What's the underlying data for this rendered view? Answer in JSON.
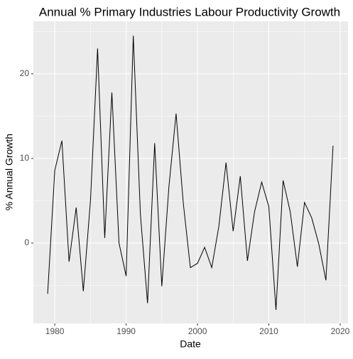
{
  "chart_data": {
    "type": "line",
    "title": "Annual % Primary Industries Labour Productivity Growth",
    "x_label": "Date",
    "y_label": "% Annual Growth",
    "x": [
      1979,
      1980,
      1981,
      1982,
      1983,
      1984,
      1985,
      1986,
      1987,
      1988,
      1989,
      1990,
      1991,
      1992,
      1993,
      1994,
      1995,
      1996,
      1997,
      1998,
      1999,
      2000,
      2001,
      2002,
      2003,
      2004,
      2005,
      2006,
      2007,
      2008,
      2009,
      2010,
      2011,
      2012,
      2013,
      2014,
      2015,
      2016,
      2017,
      2018,
      2019
    ],
    "series": [
      {
        "name": "growth",
        "color": "#000000",
        "values": [
          -6.0,
          8.6,
          12.1,
          -2.2,
          4.2,
          -5.7,
          5.0,
          23.0,
          0.6,
          17.8,
          0,
          -3.9,
          24.5,
          3.4,
          -7.1,
          11.8,
          -5.1,
          6.7,
          15.3,
          4.8,
          -2.9,
          -2.4,
          -0.5,
          -2.9,
          2.0,
          9.5,
          1.4,
          7.9,
          -2.1,
          3.7,
          7.2,
          4.3,
          -7.9,
          7.4,
          3.7,
          -2.8,
          4.8,
          3.0,
          -0.1,
          -4.4,
          11.5
        ]
      }
    ],
    "xlim": [
      1977,
      2021.1
    ],
    "xticks": [
      1980,
      1990,
      2000,
      2010,
      2020
    ],
    "ylim": [
      -9.5,
      26.2
    ],
    "yticks": [
      0,
      10,
      20
    ],
    "grid": true
  }
}
